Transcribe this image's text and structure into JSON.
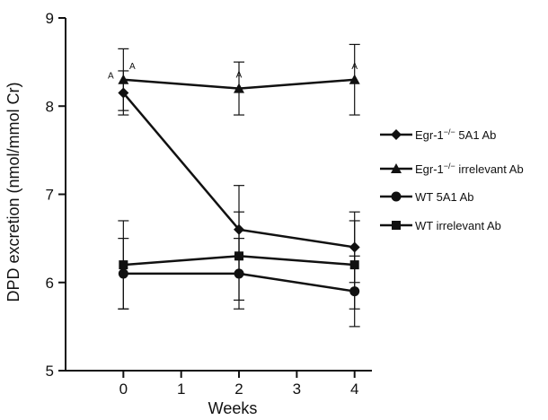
{
  "chart_data": {
    "type": "line",
    "xlabel": "Weeks",
    "ylabel": "DPD excretion (nmol/mmol Cr)",
    "xlim": [
      -1,
      4.3
    ],
    "ylim": [
      5,
      9
    ],
    "x_ticks": [
      0,
      1,
      2,
      3,
      4
    ],
    "y_ticks": [
      5,
      6,
      7,
      8,
      9
    ],
    "grid": false,
    "legend_position": "right",
    "series": [
      {
        "name": "Egr-1−/− 5A1 Ab",
        "label_main": "Egr-1",
        "label_sup": "−/−",
        "label_rest": " 5A1 Ab",
        "marker": "diamond",
        "x": [
          0,
          2,
          4
        ],
        "y": [
          8.15,
          6.6,
          6.4
        ],
        "err": [
          0.25,
          0.5,
          0.4
        ]
      },
      {
        "name": "Egr-1−/− irrelevant Ab",
        "label_main": "Egr-1",
        "label_sup": "−/−",
        "label_rest": " irrelevant Ab",
        "marker": "triangle",
        "x": [
          0,
          2,
          4
        ],
        "y": [
          8.3,
          8.2,
          8.3
        ],
        "err": [
          0.35,
          0.3,
          0.4
        ]
      },
      {
        "name": "WT 5A1 Ab",
        "label_main": "WT 5A1 Ab",
        "label_sup": "",
        "label_rest": "",
        "marker": "circle",
        "x": [
          0,
          2,
          4
        ],
        "y": [
          6.1,
          6.1,
          5.9
        ],
        "err": [
          0.4,
          0.4,
          0.4
        ]
      },
      {
        "name": "WT irrelevant Ab",
        "label_main": "WT irrelevant Ab",
        "label_sup": "",
        "label_rest": "",
        "marker": "square",
        "x": [
          0,
          2,
          4
        ],
        "y": [
          6.2,
          6.3,
          6.2
        ],
        "err": [
          0.5,
          0.5,
          0.5
        ]
      }
    ],
    "annotations": [
      {
        "text": "A",
        "x": 0,
        "y": 8.15,
        "position": "upper-left"
      },
      {
        "text": "A",
        "x": 0,
        "y": 8.3,
        "position": "upper-right"
      },
      {
        "text": "A",
        "x": 2,
        "y": 8.2,
        "position": "above"
      },
      {
        "text": "A",
        "x": 4,
        "y": 8.3,
        "position": "above"
      }
    ]
  }
}
